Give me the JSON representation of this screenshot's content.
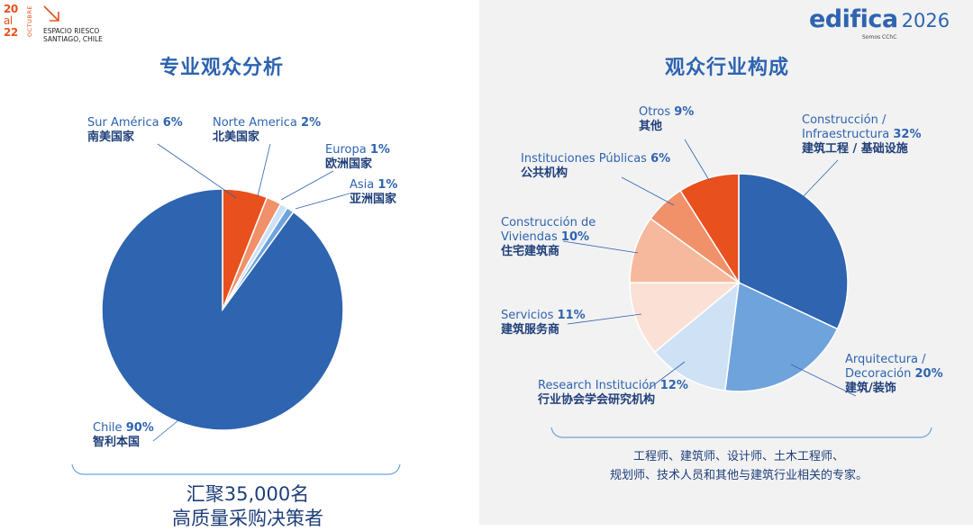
{
  "header": {
    "dates": [
      "20",
      "al",
      "22"
    ],
    "month": "OCTUBRE",
    "venue_line1": "ESPACIO RIESCO",
    "venue_line2": "SANTIAGO, CHILE"
  },
  "brand": {
    "name": "edifica",
    "year": "2026",
    "sub": "Somos CChC"
  },
  "summary": {
    "line1": "汇聚35,000名",
    "line2": "高质量采购决策者"
  },
  "footnote": {
    "line1": "工程师、建筑师、设计师、土木工程师、",
    "line2": "规划师、技术人员和其他与建筑行业相关的专家。"
  },
  "colors": {
    "blue_dark": "#2e64b0",
    "blue_mid": "#6fa3dc",
    "blue_light": "#cfe1f5",
    "orange": "#e8501e"
  },
  "chart_data": [
    {
      "type": "pie",
      "title": "专业观众分析",
      "slices": [
        {
          "label": "Chile",
          "label_zh": "智利本国",
          "value": 90,
          "display": "90%",
          "color": "#2e64b0"
        },
        {
          "label": "Sur América",
          "label_zh": "南美国家",
          "value": 6,
          "display": "6%",
          "color": "#e8501e"
        },
        {
          "label": "Norte America",
          "label_zh": "北美国家",
          "value": 2,
          "display": "2%",
          "color": "#f0916a"
        },
        {
          "label": "Europa",
          "label_zh": "欧洲国家",
          "value": 1,
          "display": "1%",
          "color": "#cfe1f5"
        },
        {
          "label": "Asia",
          "label_zh": "亚洲国家",
          "value": 1,
          "display": "1%",
          "color": "#6fa3dc"
        }
      ]
    },
    {
      "type": "pie",
      "title": "观众行业构成",
      "slices": [
        {
          "label": "Construcción / Infraestructura",
          "label_zh": "建筑工程 / 基础设施",
          "value": 32,
          "display": "32%",
          "color": "#2e64b0"
        },
        {
          "label": "Arquitectura / Decoración",
          "label_zh": "建筑/装饰",
          "value": 20,
          "display": "20%",
          "color": "#6fa3dc"
        },
        {
          "label": "Research Institución",
          "label_zh": "行业协会学会研究机构",
          "value": 12,
          "display": "12%",
          "color": "#cfe1f5"
        },
        {
          "label": "Servicios",
          "label_zh": "建筑服务商",
          "value": 11,
          "display": "11%",
          "color": "#fbe0d5"
        },
        {
          "label": "Construcción de Viviendas",
          "label_zh": "住宅建筑商",
          "value": 10,
          "display": "10%",
          "color": "#f6b99e"
        },
        {
          "label": "Instituciones Públicas",
          "label_zh": "公共机构",
          "value": 6,
          "display": "6%",
          "color": "#f0916a"
        },
        {
          "label": "Otros",
          "label_zh": "其他",
          "value": 9,
          "display": "9%",
          "color": "#e8501e"
        }
      ]
    }
  ]
}
